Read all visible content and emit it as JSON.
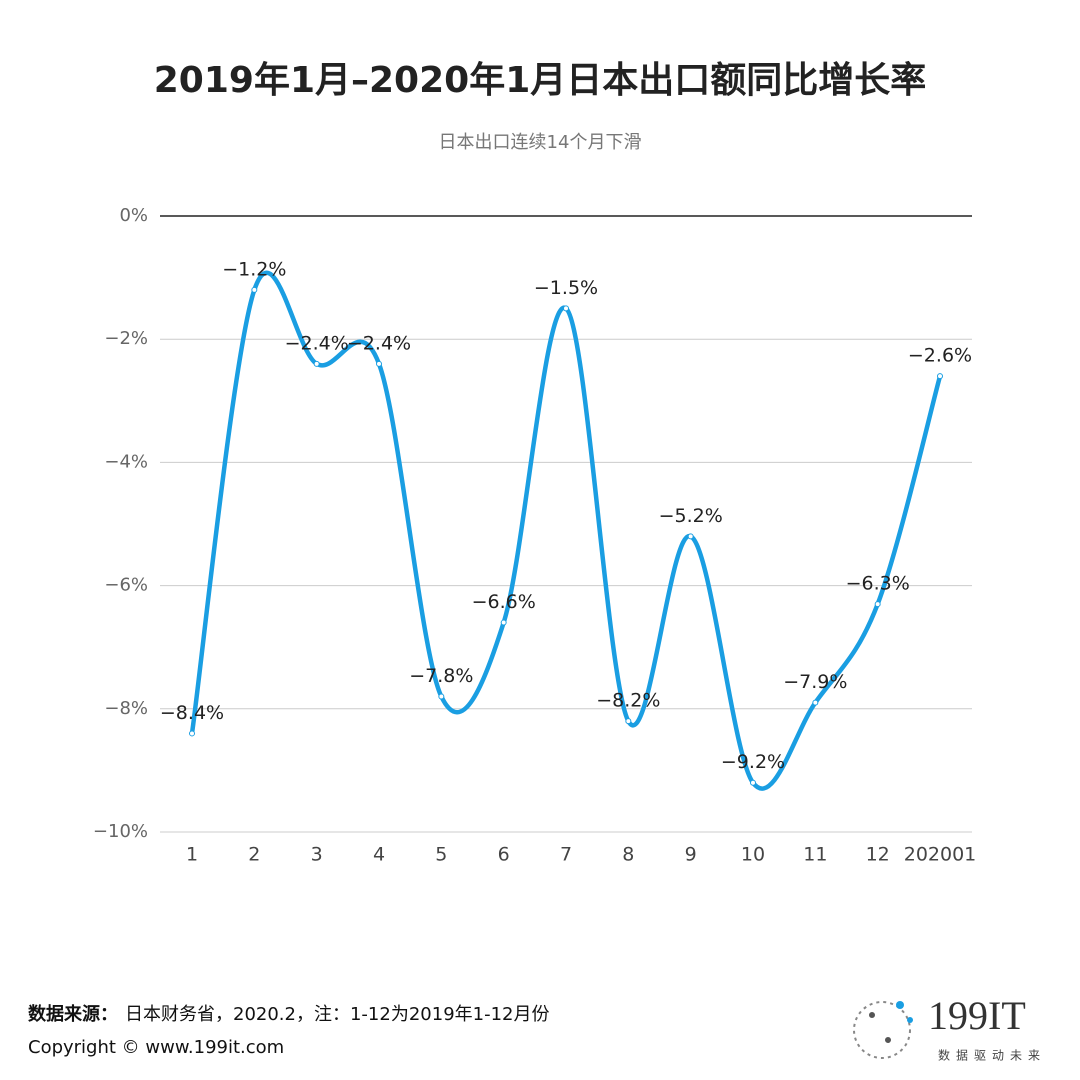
{
  "chart_data": {
    "type": "line",
    "title": "2019年1月–2020年1月日本出口额同比增长率",
    "subtitle": "日本出口连续14个月下滑",
    "categories": [
      "1",
      "2",
      "3",
      "4",
      "5",
      "6",
      "7",
      "8",
      "9",
      "10",
      "11",
      "12",
      "202001"
    ],
    "series": [
      {
        "name": "日本出口额同比增长率",
        "color": "#1a9ee2",
        "values": [
          -8.4,
          -1.2,
          -2.4,
          -2.4,
          -7.8,
          -6.6,
          -1.5,
          -8.2,
          -5.2,
          -9.2,
          -7.9,
          -6.3,
          -2.6
        ],
        "value_labels": [
          "−8.4%",
          "−1.2%",
          "−2.4%",
          "−2.4%",
          "−7.8%",
          "−6.6%",
          "−1.5%",
          "−8.2%",
          "−5.2%",
          "−9.2%",
          "−7.9%",
          "−6.3%",
          "−2.6%"
        ]
      }
    ],
    "ylim": [
      -10,
      0
    ],
    "yticks": [
      {
        "value": 0,
        "label": "0%"
      },
      {
        "value": -2,
        "label": "−2%"
      },
      {
        "value": -4,
        "label": "−4%"
      },
      {
        "value": -6,
        "label": "−6%"
      },
      {
        "value": -8,
        "label": "−8%"
      },
      {
        "value": -10,
        "label": "−10%"
      }
    ],
    "grid": true
  },
  "footer": {
    "source_label": "数据来源：",
    "source": "日本财务省，2020.2，注：1-12为2019年1-12月份",
    "copyright": "Copyright ©  www.199it.com",
    "logo": "199IT",
    "slogan": "数据驱动未来"
  }
}
